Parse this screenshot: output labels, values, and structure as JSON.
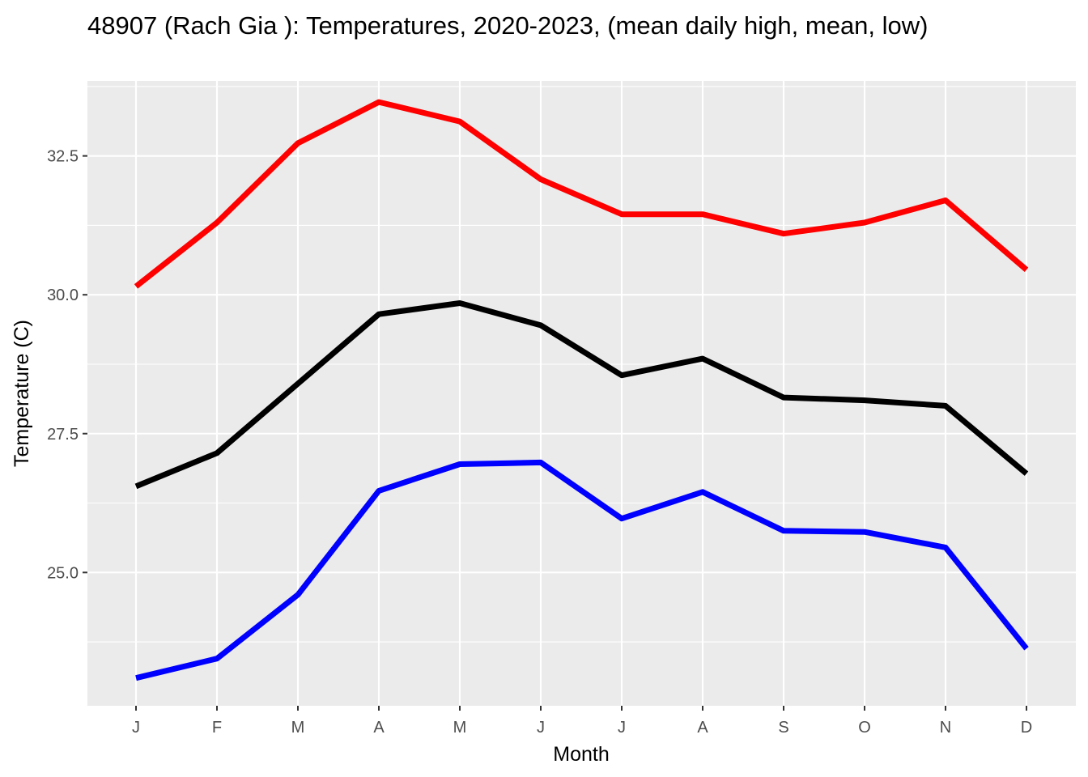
{
  "chart_data": {
    "type": "line",
    "title": "48907 (Rach Gia ): Temperatures, 2020-2023, (mean daily high, mean, low)",
    "xlabel": "Month",
    "ylabel": "Temperature (C)",
    "categories": [
      "J",
      "F",
      "M",
      "A",
      "M",
      "J",
      "J",
      "A",
      "S",
      "O",
      "N",
      "D"
    ],
    "y_ticks": [
      "25.0",
      "27.5",
      "30.0",
      "32.5"
    ],
    "y_tick_values": [
      25.0,
      27.5,
      30.0,
      32.5
    ],
    "ylim": [
      22.6,
      33.85
    ],
    "grid": true,
    "legend": "none",
    "series": [
      {
        "color": "#ff0000",
        "values": [
          30.15,
          31.3,
          32.73,
          33.47,
          33.12,
          32.08,
          31.45,
          31.45,
          31.1,
          31.3,
          31.7,
          30.45
        ]
      },
      {
        "color": "#000000",
        "values": [
          26.55,
          27.15,
          28.4,
          29.65,
          29.85,
          29.45,
          28.55,
          28.85,
          28.15,
          28.1,
          28.0,
          26.78
        ]
      },
      {
        "color": "#0000ff",
        "values": [
          23.1,
          23.45,
          24.6,
          26.47,
          26.95,
          26.98,
          25.97,
          26.45,
          25.75,
          25.73,
          25.45,
          23.63
        ]
      }
    ]
  }
}
